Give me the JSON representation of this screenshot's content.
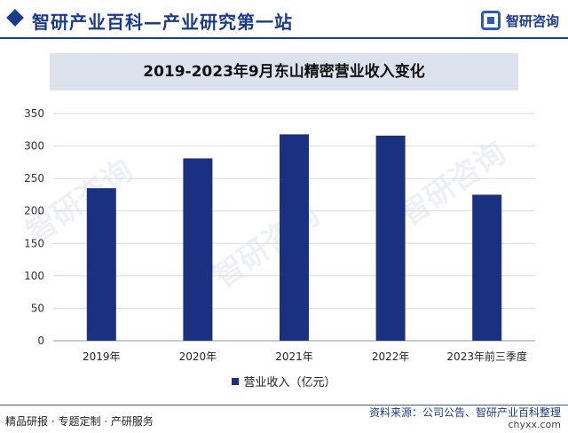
{
  "header": {
    "site_title": "智研产业百科—产业研究第一站",
    "logo_text": "智研咨询"
  },
  "chart_data": {
    "type": "bar",
    "title": "2019-2023年9月东山精密营业收入变化",
    "categories": [
      "2019年",
      "2020年",
      "2021年",
      "2022年",
      "2023年前三季度"
    ],
    "series": [
      {
        "name": "营业收入（亿元）",
        "values": [
          235,
          281,
          318,
          316,
          225
        ],
        "color": "#1a3080"
      }
    ],
    "ylim": [
      0,
      350
    ],
    "yticks": [
      0,
      50,
      100,
      150,
      200,
      250,
      300,
      350
    ],
    "grid": true,
    "legend": "bottom"
  },
  "footer": {
    "services": "精品研报 · 专题定制 · 产研服务",
    "source": "资料来源：公司公告、智研产业百科整理",
    "url": "chyxx.com"
  },
  "watermark": "智研咨询"
}
